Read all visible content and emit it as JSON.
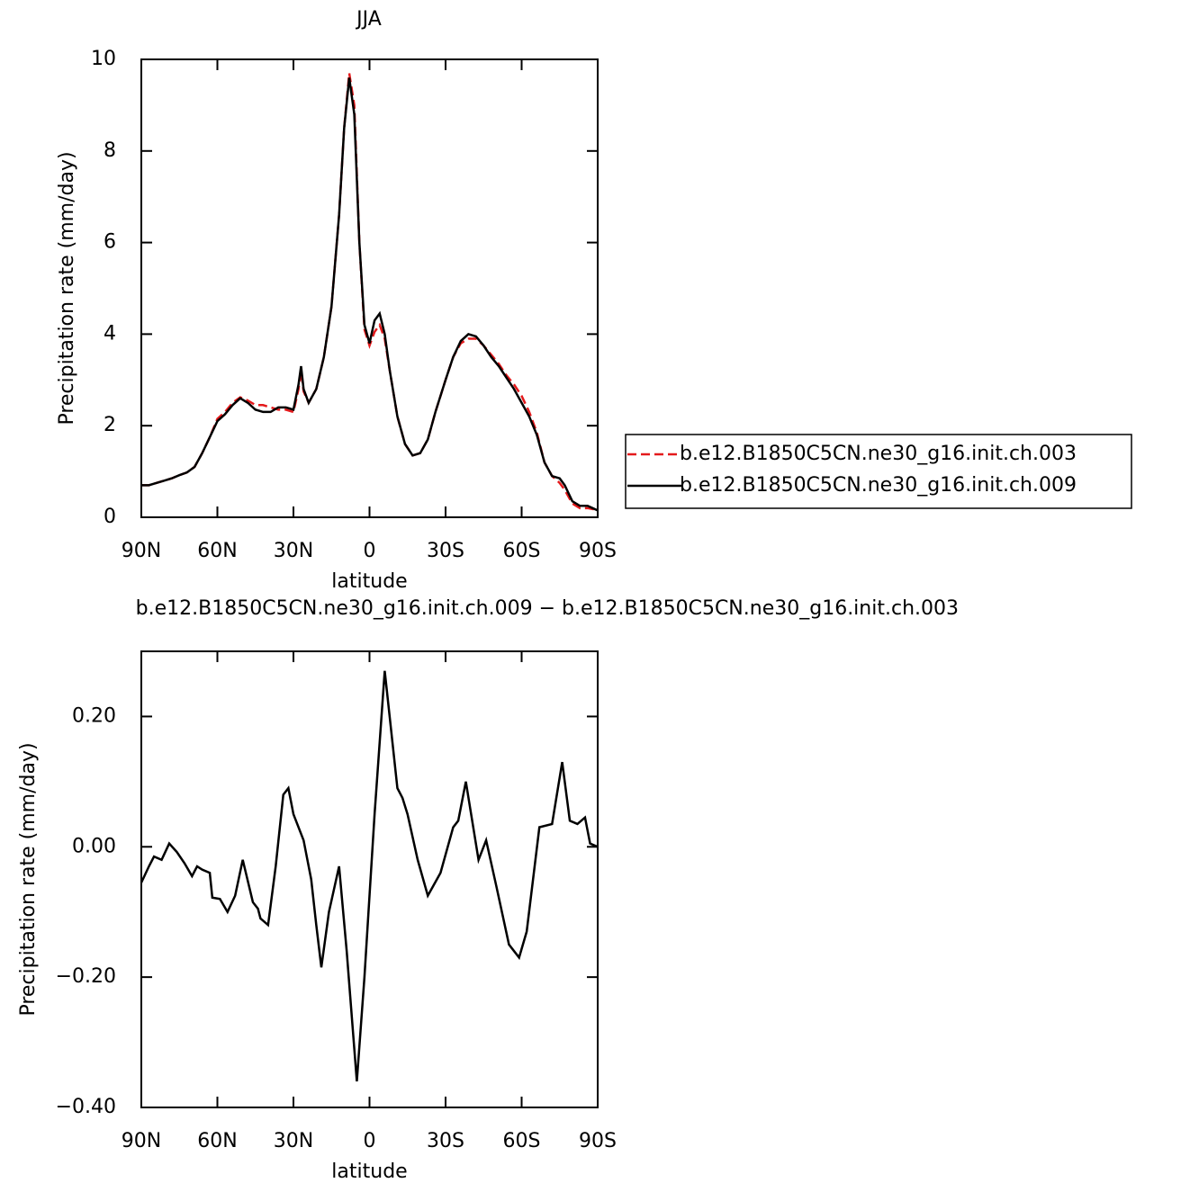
{
  "chart_data": [
    {
      "type": "line",
      "title": "JJA",
      "xlabel": "latitude",
      "ylabel": "Precipitation rate (mm/day)",
      "x": [
        90,
        87,
        84,
        81,
        78,
        75,
        72,
        69,
        66,
        63,
        60,
        57,
        54,
        51,
        48,
        45,
        42,
        39,
        36,
        33,
        30,
        28,
        27,
        26,
        24,
        21,
        18,
        15,
        12,
        10,
        8,
        6,
        4,
        2,
        0,
        -2,
        -4,
        -6,
        -8,
        -11,
        -14,
        -17,
        -20,
        -23,
        -26,
        -30,
        -33,
        -36,
        -39,
        -42,
        -45,
        -48,
        -51,
        -54,
        -57,
        -60,
        -63,
        -66,
        -69,
        -72,
        -75,
        -77,
        -80,
        -83,
        -86,
        -88,
        -90
      ],
      "series": [
        {
          "name": "b.e12.B1850C5CN.ne30_g16.init.ch.003",
          "color": "#e41a1c",
          "line_style": "dashed",
          "values": [
            0.7,
            0.7,
            0.75,
            0.8,
            0.85,
            0.92,
            0.98,
            1.1,
            1.4,
            1.75,
            2.15,
            2.3,
            2.5,
            2.62,
            2.55,
            2.45,
            2.45,
            2.4,
            2.35,
            2.35,
            2.3,
            2.8,
            3.2,
            2.75,
            2.5,
            2.8,
            3.5,
            4.6,
            6.6,
            8.5,
            9.7,
            9.0,
            6.0,
            4.1,
            3.75,
            4.05,
            4.2,
            3.9,
            3.2,
            2.2,
            1.6,
            1.35,
            1.4,
            1.7,
            2.3,
            3.0,
            3.5,
            3.8,
            3.9,
            3.9,
            3.75,
            3.55,
            3.35,
            3.1,
            2.9,
            2.65,
            2.3,
            1.85,
            1.2,
            0.9,
            0.75,
            0.6,
            0.3,
            0.2,
            0.2,
            0.18,
            0.15
          ]
        },
        {
          "name": "b.e12.B1850C5CN.ne30_g16.init.ch.009",
          "color": "#000000",
          "line_style": "solid",
          "values": [
            0.7,
            0.7,
            0.75,
            0.8,
            0.85,
            0.92,
            0.98,
            1.1,
            1.4,
            1.75,
            2.1,
            2.25,
            2.45,
            2.6,
            2.5,
            2.35,
            2.3,
            2.3,
            2.4,
            2.4,
            2.35,
            2.9,
            3.3,
            2.8,
            2.5,
            2.8,
            3.5,
            4.6,
            6.6,
            8.5,
            9.6,
            8.8,
            6.0,
            4.2,
            3.8,
            4.3,
            4.45,
            4.0,
            3.2,
            2.2,
            1.6,
            1.35,
            1.4,
            1.7,
            2.3,
            3.0,
            3.5,
            3.85,
            4.0,
            3.95,
            3.75,
            3.5,
            3.3,
            3.05,
            2.8,
            2.5,
            2.2,
            1.8,
            1.2,
            0.9,
            0.85,
            0.7,
            0.35,
            0.25,
            0.25,
            0.2,
            0.15
          ]
        }
      ],
      "xlim": [
        90,
        -90
      ],
      "xticks": [
        {
          "value": 90,
          "label": "90N"
        },
        {
          "value": 60,
          "label": "60N"
        },
        {
          "value": 30,
          "label": "30N"
        },
        0,
        {
          "value": -30,
          "label": "30S"
        },
        {
          "value": -60,
          "label": "60S"
        },
        {
          "value": -90,
          "label": "90S"
        }
      ],
      "ylim": [
        0,
        10
      ],
      "yticks": [
        0,
        2,
        4,
        6,
        8,
        10
      ],
      "legend_position": "right"
    },
    {
      "type": "line",
      "title": "b.e12.B1850C5CN.ne30_g16.init.ch.009 − b.e12.B1850C5CN.ne30_g16.init.ch.003",
      "xlabel": "latitude",
      "ylabel": "Precipitation rate (mm/day)",
      "x": [
        90,
        87,
        85,
        82,
        79,
        76,
        73,
        70,
        68,
        66,
        63,
        62,
        59,
        56,
        53,
        50,
        46,
        44,
        43,
        40,
        37,
        34,
        32,
        30,
        26,
        23,
        21,
        19,
        16,
        12,
        9,
        5,
        2,
        -2,
        -6,
        -11,
        -13,
        -15,
        -19,
        -23,
        -28,
        -33,
        -35,
        -38,
        -43,
        -46,
        -50,
        -55,
        -59,
        -62,
        -67,
        -72,
        -76,
        -79,
        -82,
        -85,
        -87,
        -90
      ],
      "series": [
        {
          "name": "difference",
          "color": "#000000",
          "line_style": "solid",
          "values": [
            -0.055,
            -0.03,
            -0.015,
            -0.02,
            0.005,
            -0.008,
            -0.025,
            -0.045,
            -0.03,
            -0.035,
            -0.04,
            -0.078,
            -0.08,
            -0.1,
            -0.075,
            -0.02,
            -0.085,
            -0.095,
            -0.11,
            -0.12,
            -0.03,
            0.08,
            0.09,
            0.05,
            0.01,
            -0.05,
            -0.12,
            -0.185,
            -0.1,
            -0.03,
            -0.16,
            -0.36,
            -0.2,
            0.05,
            0.27,
            0.09,
            0.075,
            0.05,
            -0.02,
            -0.075,
            -0.04,
            0.03,
            0.04,
            0.1,
            -0.02,
            0.01,
            -0.06,
            -0.15,
            -0.17,
            -0.13,
            0.03,
            0.035,
            0.13,
            0.04,
            0.035,
            0.045,
            0.005,
            0
          ]
        }
      ],
      "xlim": [
        90,
        -90
      ],
      "xticks": [
        {
          "value": 90,
          "label": "90N"
        },
        {
          "value": 60,
          "label": "60N"
        },
        {
          "value": 30,
          "label": "30N"
        },
        0,
        {
          "value": -30,
          "label": "30S"
        },
        {
          "value": -60,
          "label": "60S"
        },
        {
          "value": -90,
          "label": "90S"
        }
      ],
      "ylim": [
        -0.4,
        0.3
      ],
      "yticks": [
        {
          "value": 0.2,
          "label": "0.20"
        },
        {
          "value": 0,
          "label": "0.00"
        },
        {
          "value": -0.2,
          "label": "−0.20"
        },
        {
          "value": -0.4,
          "label": "−0.40"
        }
      ]
    }
  ]
}
